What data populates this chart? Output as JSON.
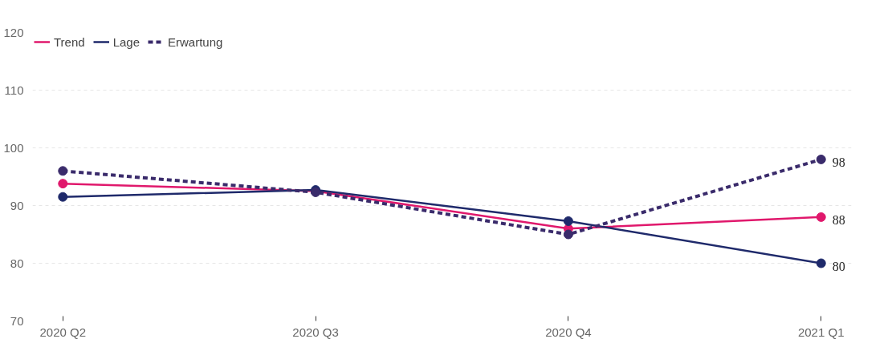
{
  "chart_data": {
    "type": "line",
    "categories": [
      "2020 Q2",
      "2020 Q3",
      "2020 Q4",
      "2021 Q1"
    ],
    "series": [
      {
        "name": "Trend",
        "color": "#e0186c",
        "values": [
          93.8,
          92.5,
          86,
          88
        ],
        "value_labels": [
          null,
          null,
          null,
          "88"
        ]
      },
      {
        "name": "Lage",
        "color": "#1f2a6b",
        "values": [
          91.5,
          92.7,
          87.3,
          80
        ],
        "value_labels": [
          null,
          null,
          null,
          "80"
        ]
      },
      {
        "name": "Erwartung",
        "color": "#3a2b6b",
        "values": [
          96,
          92.3,
          85,
          98
        ],
        "value_labels": [
          null,
          null,
          null,
          "98"
        ],
        "line_style": "dashed"
      }
    ],
    "ylim": [
      70,
      120
    ],
    "yticks": [
      70,
      80,
      90,
      100,
      110,
      120
    ],
    "grid": "y",
    "legend": "top left",
    "marker": "circle",
    "line_style": "solid"
  }
}
